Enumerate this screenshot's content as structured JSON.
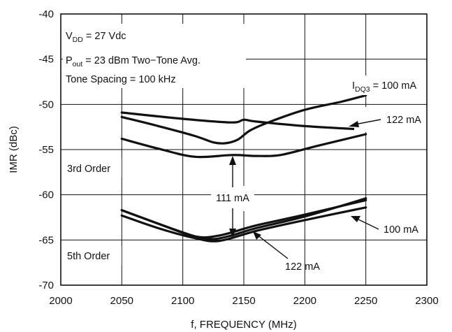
{
  "chart_data": {
    "type": "line",
    "xlabel": "f, FREQUENCY (MHz)",
    "ylabel": "IMR (dBc)",
    "xlim": [
      2000,
      2300
    ],
    "ylim": [
      -70,
      -40
    ],
    "x_ticks": [
      "2000",
      "2050",
      "2100",
      "2150",
      "2200",
      "2250",
      "2300"
    ],
    "y_ticks": [
      "-40",
      "-45",
      "-50",
      "-55",
      "-60",
      "-65",
      "-70"
    ],
    "grid": true,
    "conditions": {
      "vdd": {
        "main": "V",
        "sub": "DD",
        "rest": " = 27 Vdc"
      },
      "pout": {
        "main": "P",
        "sub": "out",
        "rest": " = 23 dBm Two−Tone Avg."
      },
      "spacing": "Tone Spacing = 100 kHz"
    },
    "annotations": {
      "idq_label": {
        "main": "I",
        "sub": "DQ3",
        "rest": " = 100 mA"
      },
      "third_122": "122 mA",
      "third_order": "3rd Order",
      "mid_111": "111 mA",
      "fifth_order": "5th Order",
      "fifth_100": "100 mA",
      "fifth_122": "122 mA"
    },
    "series": [
      {
        "group": "3rd Order",
        "x": [
          2050,
          2080,
          2110,
          2125,
          2135,
          2145,
          2155,
          2170,
          2200,
          2230,
          2250
        ],
        "values": [
          -51.4,
          -52.4,
          -53.5,
          -54.2,
          -54.3,
          -53.9,
          -52.9,
          -52.0,
          -50.6,
          -49.7,
          -49.0
        ]
      },
      {
        "group": "3rd Order",
        "x": [
          2050,
          2100,
          2140,
          2150,
          2160,
          2200,
          2250
        ],
        "values": [
          -50.9,
          -51.6,
          -52.0,
          -51.7,
          -51.9,
          -52.4,
          -52.8
        ]
      },
      {
        "group": "3rd Order",
        "x": [
          2050,
          2080,
          2110,
          2140,
          2160,
          2180,
          2210,
          2250
        ],
        "values": [
          -53.8,
          -54.9,
          -55.8,
          -55.6,
          -55.7,
          -55.6,
          -54.6,
          -53.3
        ]
      },
      {
        "group": "5th Order",
        "x": [
          2050,
          2080,
          2110,
          2130,
          2160,
          2200,
          2250
        ],
        "values": [
          -62.3,
          -63.7,
          -64.8,
          -65.1,
          -64.0,
          -62.8,
          -61.4
        ]
      },
      {
        "group": "5th Order",
        "x": [
          2050,
          2080,
          2110,
          2130,
          2160,
          2200,
          2250
        ],
        "values": [
          -61.7,
          -63.2,
          -64.6,
          -64.5,
          -63.4,
          -62.2,
          -60.6
        ]
      },
      {
        "group": "5th Order",
        "x": [
          2050,
          2080,
          2110,
          2125,
          2140,
          2160,
          2200,
          2250
        ],
        "values": [
          -61.7,
          -63.2,
          -64.6,
          -64.9,
          -64.5,
          -63.7,
          -62.4,
          -60.4
        ]
      }
    ]
  }
}
